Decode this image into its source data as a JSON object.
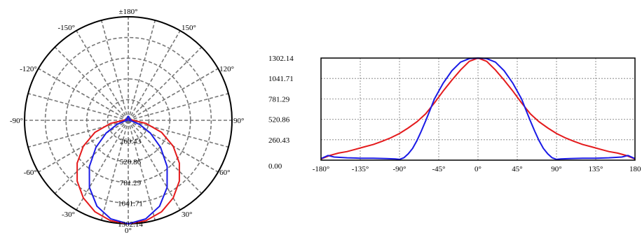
{
  "colors": {
    "series_a": "#e41a1c",
    "series_b": "#1a1ae6",
    "grid": "#777777",
    "frame": "#000000"
  },
  "chart_data": [
    {
      "type": "polar",
      "angle_labels": [
        "±180°",
        "-150°",
        "150°",
        "-120°",
        "120°",
        "-90°",
        "90°",
        "-60°",
        "60°",
        "-30°",
        "30°",
        "0°"
      ],
      "angle_values": [
        180,
        -150,
        150,
        -120,
        120,
        -90,
        90,
        -60,
        60,
        -30,
        30,
        0
      ],
      "radial_labels": [
        "260.43",
        "520.86",
        "781.29",
        "1041.71",
        "1302.14"
      ],
      "radial_values": [
        260.43,
        520.86,
        781.29,
        1041.71,
        1302.14
      ],
      "rmax": 1302.14,
      "grid": true,
      "series": [
        {
          "color": "#e41a1c",
          "angles": [
            0,
            10,
            20,
            30,
            40,
            50,
            60,
            70,
            80,
            90,
            100,
            110,
            120,
            130,
            140,
            150,
            160,
            170,
            180
          ],
          "values": [
            1302.14,
            1282,
            1224,
            1128,
            998,
            837,
            651,
            446,
            226,
            60,
            40,
            30,
            25,
            22,
            20,
            18,
            16,
            15,
            15
          ]
        },
        {
          "color": "#1a1ae6",
          "angles": [
            0,
            10,
            20,
            30,
            40,
            50,
            60,
            70,
            80,
            90,
            100,
            110,
            120,
            130,
            140,
            150,
            160,
            170,
            180
          ],
          "values": [
            1302.14,
            1260,
            1150,
            975,
            760,
            530,
            320,
            150,
            40,
            5,
            20,
            30,
            25,
            20,
            20,
            25,
            35,
            45,
            50
          ]
        }
      ]
    },
    {
      "type": "line",
      "x_ticks": [
        "-180°",
        "-135°",
        "-90°",
        "-45°",
        "0°",
        "45°",
        "90°",
        "135°",
        "180"
      ],
      "x_tick_values": [
        -180,
        -135,
        -90,
        -45,
        0,
        45,
        90,
        135,
        180
      ],
      "y_ticks": [
        "0.00",
        "260.43",
        "520.86",
        "781.29",
        "1041.71",
        "1302.14"
      ],
      "y_tick_values": [
        0,
        260.43,
        520.86,
        781.29,
        1041.71,
        1302.14
      ],
      "xlim": [
        -180,
        180
      ],
      "ylim": [
        0,
        1302.14
      ],
      "grid": true,
      "series": [
        {
          "color": "#e41a1c",
          "x": [
            -180,
            -170,
            -160,
            -150,
            -140,
            -130,
            -120,
            -110,
            -100,
            -90,
            -80,
            -70,
            -60,
            -50,
            -40,
            -30,
            -20,
            -10,
            0,
            10,
            20,
            30,
            40,
            50,
            60,
            70,
            80,
            90,
            100,
            110,
            120,
            130,
            140,
            150,
            160,
            170,
            180
          ],
          "y": [
            15,
            60,
            90,
            110,
            140,
            170,
            200,
            240,
            285,
            340,
            410,
            490,
            590,
            730,
            880,
            1020,
            1150,
            1260,
            1302.14,
            1260,
            1150,
            1020,
            880,
            730,
            590,
            490,
            410,
            340,
            285,
            240,
            200,
            170,
            140,
            110,
            90,
            60,
            15
          ]
        },
        {
          "color": "#1a1ae6",
          "x": [
            -180,
            -172,
            -165,
            -150,
            -135,
            -120,
            -105,
            -95,
            -90,
            -85,
            -80,
            -75,
            -70,
            -65,
            -60,
            -55,
            -50,
            -40,
            -30,
            -20,
            -10,
            0,
            10,
            20,
            30,
            40,
            50,
            55,
            60,
            65,
            70,
            75,
            80,
            85,
            90,
            95,
            105,
            120,
            135,
            150,
            165,
            172,
            180
          ],
          "y": [
            20,
            60,
            40,
            30,
            25,
            25,
            20,
            15,
            10,
            30,
            80,
            150,
            250,
            370,
            500,
            640,
            780,
            980,
            1140,
            1250,
            1295,
            1302.14,
            1295,
            1250,
            1140,
            980,
            780,
            640,
            500,
            370,
            250,
            150,
            80,
            30,
            10,
            15,
            20,
            25,
            25,
            30,
            40,
            60,
            20
          ]
        }
      ]
    }
  ]
}
